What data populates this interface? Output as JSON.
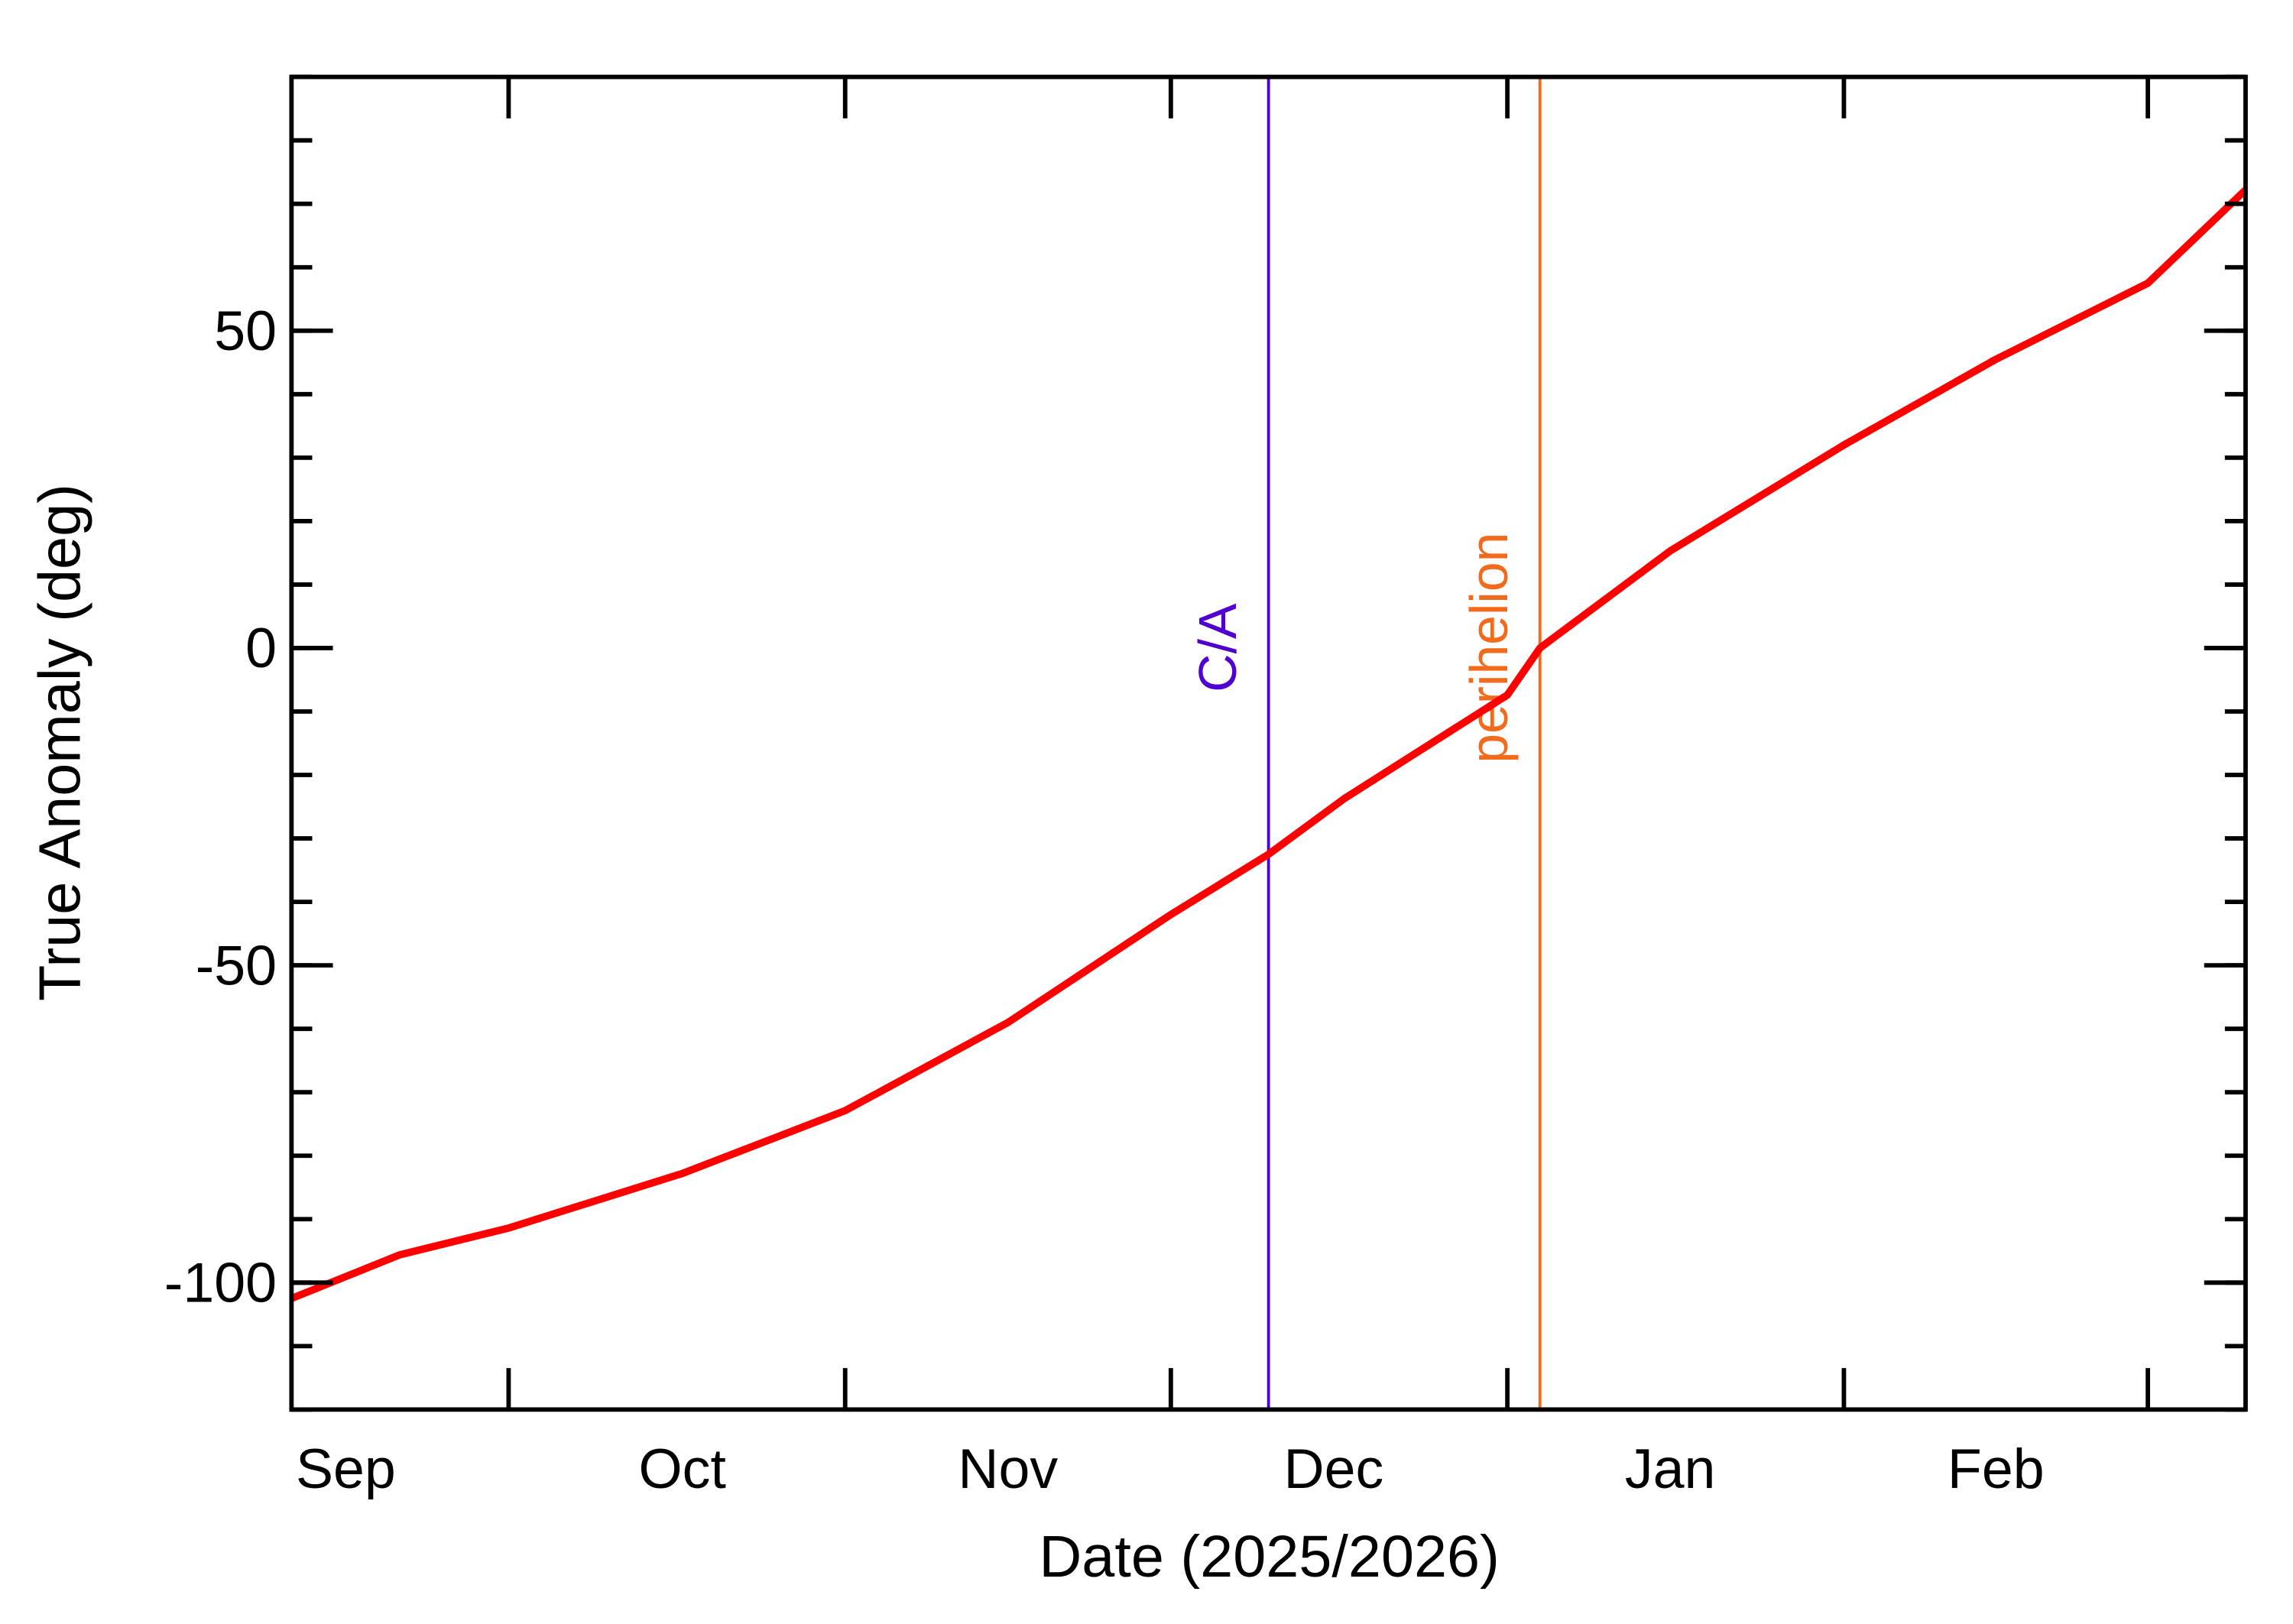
{
  "chart_data": {
    "type": "line",
    "x_label": "Date (2025/2026)",
    "y_label": "True Anomaly (deg)",
    "x": [
      10,
      20,
      30,
      46,
      61,
      76,
      91,
      100,
      107,
      122,
      125,
      137,
      153,
      167,
      181,
      190
    ],
    "values": [
      -102.5,
      -95.6,
      -91.4,
      -82.8,
      -72.9,
      -59,
      -42,
      -32.5,
      -23.7,
      -7.4,
      0,
      15.3,
      32,
      45.5,
      57.5,
      72.2
    ],
    "color": "#ff0000",
    "xlim": [
      10,
      190
    ],
    "ylim": [
      -120,
      90
    ],
    "xticks": [
      {
        "value": 15,
        "label": "Sep"
      },
      {
        "value": 46,
        "label": "Oct"
      },
      {
        "value": 76,
        "label": "Nov"
      },
      {
        "value": 106,
        "label": "Dec"
      },
      {
        "value": 137,
        "label": "Jan"
      },
      {
        "value": 167,
        "label": "Feb"
      }
    ],
    "x_month_ticks": [
      30,
      61,
      91,
      122,
      153,
      181
    ],
    "yticks": [
      -100,
      -50,
      0,
      50
    ],
    "y_minor_interval": 10,
    "annotations": [
      {
        "x": 100,
        "text": "C/A",
        "color": "#5000d0"
      },
      {
        "x": 125,
        "text": "perihelion",
        "color": "#f26a1b"
      }
    ]
  }
}
